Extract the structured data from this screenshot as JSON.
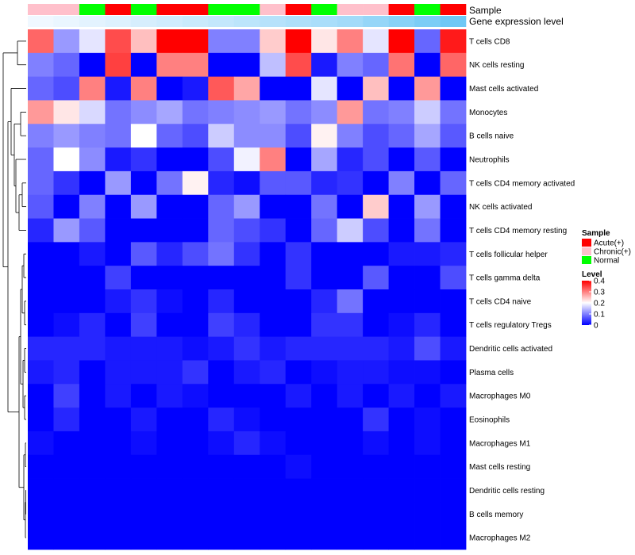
{
  "chart_data": {
    "type": "heatmap",
    "title": "",
    "row_labels": [
      "T cells CD8",
      "NK cells resting",
      "Mast cells activated",
      "Monocytes",
      "B cells naive",
      "Neutrophils",
      "T cells CD4 memory activated",
      "NK cells activated",
      "T cells CD4 memory resting",
      "T cells follicular helper",
      "T cells gamma delta",
      "T cells CD4 naive",
      "T cells regulatory  Tregs",
      "Dendritic cells activated",
      "Plasma cells",
      "Macrophages M0",
      "Eosinophils",
      "Macrophages M1",
      "Mast cells resting",
      "Dendritic cells resting",
      "B cells memory",
      "Macrophages M2"
    ],
    "column_count": 17,
    "annotations": {
      "sample_track_label": "Sample",
      "gene_track_label": "Gene expression level",
      "sample": [
        "Chronic(+)",
        "Chronic(+)",
        "Normal",
        "Acute(+)",
        "Normal",
        "Acute(+)",
        "Acute(+)",
        "Normal",
        "Normal",
        "Chronic(+)",
        "Acute(+)",
        "Normal",
        "Chronic(+)",
        "Chronic(+)",
        "Acute(+)",
        "Normal",
        "Acute(+)"
      ],
      "gene_expression": [
        0.0,
        0.05,
        0.1,
        0.15,
        0.2,
        0.25,
        0.3,
        0.35,
        0.4,
        0.45,
        0.5,
        0.55,
        0.6,
        0.7,
        0.8,
        0.9,
        1.0
      ]
    },
    "values": [
      [
        0.32,
        0.12,
        0.18,
        0.34,
        0.25,
        0.4,
        0.4,
        0.1,
        0.1,
        0.24,
        0.4,
        0.22,
        0.3,
        0.18,
        0.4,
        0.08,
        0.38
      ],
      [
        0.1,
        0.08,
        0.0,
        0.35,
        0.0,
        0.3,
        0.3,
        0.0,
        0.0,
        0.15,
        0.34,
        0.02,
        0.1,
        0.08,
        0.31,
        0.0,
        0.32
      ],
      [
        0.08,
        0.06,
        0.3,
        0.02,
        0.3,
        0.0,
        0.02,
        0.33,
        0.27,
        0.0,
        0.0,
        0.18,
        0.0,
        0.25,
        0.0,
        0.28,
        0.0
      ],
      [
        0.28,
        0.22,
        0.17,
        0.09,
        0.11,
        0.13,
        0.09,
        0.1,
        0.11,
        0.12,
        0.09,
        0.11,
        0.28,
        0.09,
        0.1,
        0.16,
        0.09
      ],
      [
        0.1,
        0.12,
        0.1,
        0.09,
        0.2,
        0.08,
        0.06,
        0.16,
        0.11,
        0.11,
        0.06,
        0.21,
        0.1,
        0.06,
        0.08,
        0.13,
        0.07
      ],
      [
        0.08,
        0.2,
        0.11,
        0.02,
        0.04,
        0.0,
        0.0,
        0.06,
        0.19,
        0.3,
        0.0,
        0.13,
        0.03,
        0.06,
        0.0,
        0.07,
        0.0
      ],
      [
        0.08,
        0.04,
        0.0,
        0.12,
        0.0,
        0.09,
        0.21,
        0.03,
        0.01,
        0.07,
        0.07,
        0.03,
        0.04,
        0.0,
        0.1,
        0.0,
        0.08
      ],
      [
        0.07,
        0.0,
        0.1,
        0.0,
        0.12,
        0.0,
        0.0,
        0.08,
        0.12,
        0.0,
        0.0,
        0.09,
        0.0,
        0.24,
        0.0,
        0.12,
        0.0
      ],
      [
        0.03,
        0.12,
        0.07,
        0.0,
        0.0,
        0.0,
        0.0,
        0.08,
        0.06,
        0.04,
        0.0,
        0.08,
        0.16,
        0.06,
        0.0,
        0.09,
        0.0
      ],
      [
        0.0,
        0.0,
        0.02,
        0.0,
        0.07,
        0.03,
        0.06,
        0.09,
        0.04,
        0.0,
        0.04,
        0.0,
        0.0,
        0.0,
        0.02,
        0.02,
        0.03
      ],
      [
        0.0,
        0.0,
        0.0,
        0.05,
        0.0,
        0.0,
        0.0,
        0.0,
        0.0,
        0.0,
        0.04,
        0.0,
        0.0,
        0.07,
        0.0,
        0.0,
        0.06
      ],
      [
        0.0,
        0.0,
        0.0,
        0.02,
        0.04,
        0.01,
        0.0,
        0.03,
        0.0,
        0.0,
        0.0,
        0.03,
        0.09,
        0.0,
        0.0,
        0.0,
        0.0
      ],
      [
        0.0,
        0.01,
        0.03,
        0.0,
        0.05,
        0.0,
        0.0,
        0.05,
        0.03,
        0.0,
        0.0,
        0.04,
        0.04,
        0.0,
        0.01,
        0.03,
        0.0
      ],
      [
        0.03,
        0.03,
        0.03,
        0.02,
        0.02,
        0.02,
        0.01,
        0.02,
        0.04,
        0.02,
        0.03,
        0.03,
        0.03,
        0.03,
        0.02,
        0.06,
        0.02
      ],
      [
        0.02,
        0.03,
        0.0,
        0.02,
        0.02,
        0.02,
        0.04,
        0.0,
        0.02,
        0.03,
        0.0,
        0.01,
        0.02,
        0.02,
        0.01,
        0.01,
        0.0
      ],
      [
        0.0,
        0.05,
        0.0,
        0.02,
        0.0,
        0.02,
        0.01,
        0.0,
        0.0,
        0.0,
        0.02,
        0.0,
        0.02,
        0.0,
        0.02,
        0.0,
        0.02
      ],
      [
        0.0,
        0.03,
        0.0,
        0.0,
        0.02,
        0.0,
        0.0,
        0.03,
        0.01,
        0.0,
        0.0,
        0.0,
        0.0,
        0.04,
        0.0,
        0.01,
        0.0
      ],
      [
        0.01,
        0.0,
        0.0,
        0.0,
        0.01,
        0.0,
        0.0,
        0.01,
        0.03,
        0.01,
        0.0,
        0.0,
        0.0,
        0.01,
        0.0,
        0.01,
        0.0
      ],
      [
        0.0,
        0.0,
        0.0,
        0.0,
        0.0,
        0.0,
        0.0,
        0.0,
        0.0,
        0.0,
        0.01,
        0.0,
        0.0,
        0.0,
        0.0,
        0.0,
        0.0
      ],
      [
        0.0,
        0.0,
        0.0,
        0.0,
        0.0,
        0.0,
        0.0,
        0.0,
        0.0,
        0.0,
        0.0,
        0.0,
        0.0,
        0.0,
        0.0,
        0.0,
        0.0
      ],
      [
        0.0,
        0.0,
        0.0,
        0.0,
        0.0,
        0.0,
        0.0,
        0.0,
        0.0,
        0.0,
        0.0,
        0.0,
        0.0,
        0.0,
        0.0,
        0.0,
        0.0
      ],
      [
        0.0,
        0.0,
        0.0,
        0.0,
        0.0,
        0.0,
        0.0,
        0.0,
        0.0,
        0.0,
        0.0,
        0.0,
        0.0,
        0.0,
        0.0,
        0.0,
        0.0
      ]
    ],
    "color_scale": {
      "min": 0,
      "mid": 0.2,
      "max": 0.4,
      "low": "#0000ff",
      "midcolor": "#ffffff",
      "high": "#ff0000"
    },
    "legend": {
      "sample_title": "Sample",
      "sample_entries": [
        {
          "label": "Acute(+)",
          "color": "#ff0000"
        },
        {
          "label": "Chronic(+)",
          "color": "#ffc0cb"
        },
        {
          "label": "Normal",
          "color": "#00ff00"
        }
      ],
      "level_title": "Level",
      "level_ticks": [
        {
          "label": "0.4",
          "value": 0.4
        },
        {
          "label": "0.3",
          "value": 0.3
        },
        {
          "label": "0.2",
          "value": 0.2
        },
        {
          "label": "0.1",
          "value": 0.1
        },
        {
          "label": "0",
          "value": 0.0
        }
      ],
      "placement": "right"
    },
    "gene_track_colors": {
      "low": "#f0f8ff",
      "high": "#6ec8f5"
    },
    "dendrogram": "rows"
  }
}
